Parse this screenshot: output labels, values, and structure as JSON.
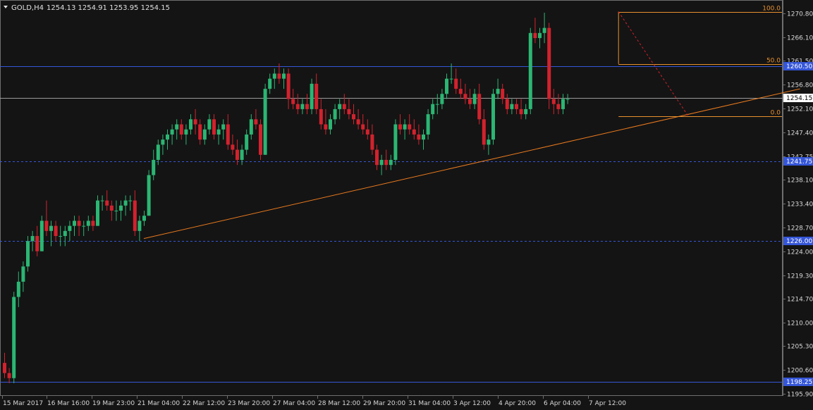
{
  "header": {
    "symbol": "GOLD,H4",
    "ohlc": "1254.13 1254.91 1253.95 1254.15"
  },
  "colors": {
    "background": "#141414",
    "bull": "#2bb673",
    "bear": "#d2222d",
    "hline": "#3556d8",
    "trend": "#e8791e",
    "fibo": "#e8912e",
    "bid": "#9a9a9a"
  },
  "chart_data": {
    "type": "candlestick",
    "timeframe": "H4",
    "ylim": [
      1195.5,
      1273.5
    ],
    "y_ticks": [
      "1270.80",
      "1266.10",
      "1261.50",
      "1256.80",
      "1252.10",
      "1247.40",
      "1242.75",
      "1238.10",
      "1233.40",
      "1228.70",
      "1224.00",
      "1219.30",
      "1214.70",
      "1210.00",
      "1205.30",
      "1200.60",
      "1195.90"
    ],
    "x_ticks": [
      "15 Mar 2017",
      "16 Mar 16:00",
      "19 Mar 23:00",
      "21 Mar 04:00",
      "22 Mar 12:00",
      "23 Mar 20:00",
      "27 Mar 04:00",
      "28 Mar 12:00",
      "29 Mar 20:00",
      "31 Mar 04:00",
      "3 Apr 12:00",
      "4 Apr 20:00",
      "6 Apr 04:00",
      "7 Apr 12:00"
    ],
    "horizontal_lines": [
      {
        "price": 1260.5,
        "label": "1260.50",
        "style": "solid"
      },
      {
        "price": 1241.75,
        "label": "1241.75",
        "style": "dashed"
      },
      {
        "price": 1226.0,
        "label": "1226.00",
        "style": "dashed"
      },
      {
        "price": 1198.25,
        "label": "1198.25",
        "style": "solid"
      }
    ],
    "current_price": {
      "price": 1254.15,
      "label": "1254.15"
    },
    "trendline": {
      "from": {
        "bar": 30,
        "price": 1226.5
      },
      "to": {
        "bar": 171,
        "price": 1256.0
      }
    },
    "fibonacci": {
      "levels": [
        {
          "level": "100.0",
          "price": 1271.2
        },
        {
          "level": "50.0",
          "price": 1260.9
        },
        {
          "level": "0.0",
          "price": 1250.6
        }
      ],
      "anchor_high": {
        "bar": 132,
        "price": 1271.2
      },
      "anchor_low": {
        "bar": 147,
        "price": 1250.6
      }
    },
    "candles": [
      [
        1202,
        1204,
        1199,
        1200
      ],
      [
        1200,
        1201,
        1198,
        1199
      ],
      [
        1199,
        1216,
        1198,
        1215
      ],
      [
        1215,
        1220,
        1213,
        1218
      ],
      [
        1218,
        1222,
        1216,
        1221
      ],
      [
        1221,
        1227,
        1220,
        1226
      ],
      [
        1226,
        1228,
        1224,
        1227
      ],
      [
        1227,
        1229,
        1223,
        1224
      ],
      [
        1224,
        1231,
        1224,
        1230
      ],
      [
        1230,
        1234,
        1227,
        1228
      ],
      [
        1228,
        1230,
        1225,
        1229
      ],
      [
        1229,
        1230,
        1226,
        1227
      ],
      [
        1227,
        1229,
        1225,
        1227
      ],
      [
        1227,
        1229,
        1225,
        1228
      ],
      [
        1228,
        1230,
        1226,
        1229
      ],
      [
        1229,
        1231,
        1227,
        1230
      ],
      [
        1230,
        1231,
        1227,
        1229
      ],
      [
        1229,
        1230,
        1227,
        1229
      ],
      [
        1229,
        1231,
        1228,
        1230
      ],
      [
        1230,
        1231,
        1228,
        1229
      ],
      [
        1229,
        1235,
        1229,
        1234
      ],
      [
        1234,
        1235,
        1232,
        1234
      ],
      [
        1234,
        1236,
        1232,
        1233
      ],
      [
        1233,
        1234,
        1230,
        1232
      ],
      [
        1232,
        1234,
        1230,
        1232
      ],
      [
        1232,
        1234,
        1230,
        1233
      ],
      [
        1233,
        1235,
        1231,
        1234
      ],
      [
        1234,
        1235,
        1232,
        1234
      ],
      [
        1234,
        1236,
        1227,
        1228
      ],
      [
        1228,
        1231,
        1226,
        1230
      ],
      [
        1230,
        1232,
        1229,
        1231
      ],
      [
        1231,
        1240,
        1231,
        1239
      ],
      [
        1239,
        1244,
        1238,
        1242
      ],
      [
        1242,
        1246,
        1241,
        1245
      ],
      [
        1245,
        1247,
        1243,
        1246
      ],
      [
        1246,
        1248,
        1244,
        1247
      ],
      [
        1247,
        1249,
        1245,
        1248
      ],
      [
        1248,
        1250,
        1246,
        1249
      ],
      [
        1249,
        1250,
        1246,
        1247
      ],
      [
        1247,
        1249,
        1245,
        1248
      ],
      [
        1248,
        1251,
        1247,
        1250
      ],
      [
        1250,
        1252,
        1247,
        1249
      ],
      [
        1249,
        1250,
        1245,
        1246
      ],
      [
        1246,
        1249,
        1245,
        1248
      ],
      [
        1248,
        1251,
        1247,
        1250
      ],
      [
        1250,
        1251,
        1246,
        1247
      ],
      [
        1247,
        1249,
        1245,
        1248
      ],
      [
        1248,
        1250,
        1246,
        1249
      ],
      [
        1249,
        1251,
        1244,
        1245
      ],
      [
        1245,
        1247,
        1243,
        1244
      ],
      [
        1244,
        1246,
        1241,
        1242
      ],
      [
        1242,
        1245,
        1241,
        1244
      ],
      [
        1244,
        1248,
        1243,
        1247
      ],
      [
        1247,
        1251,
        1246,
        1250
      ],
      [
        1250,
        1252,
        1248,
        1249
      ],
      [
        1249,
        1250,
        1242,
        1243
      ],
      [
        1243,
        1257,
        1243,
        1256
      ],
      [
        1256,
        1259,
        1255,
        1258
      ],
      [
        1258,
        1260,
        1256,
        1259
      ],
      [
        1259,
        1261,
        1257,
        1258
      ],
      [
        1258,
        1260,
        1256,
        1259
      ],
      [
        1259,
        1260,
        1252,
        1254
      ],
      [
        1254,
        1256,
        1252,
        1253
      ],
      [
        1253,
        1255,
        1251,
        1252
      ],
      [
        1252,
        1254,
        1251,
        1253
      ],
      [
        1253,
        1255,
        1251,
        1252
      ],
      [
        1252,
        1258,
        1251,
        1257
      ],
      [
        1257,
        1259,
        1251,
        1252
      ],
      [
        1252,
        1254,
        1248,
        1249
      ],
      [
        1249,
        1252,
        1247,
        1248
      ],
      [
        1248,
        1251,
        1247,
        1250
      ],
      [
        1250,
        1253,
        1249,
        1252
      ],
      [
        1252,
        1254,
        1250,
        1253
      ],
      [
        1253,
        1255,
        1251,
        1252
      ],
      [
        1252,
        1254,
        1250,
        1251
      ],
      [
        1251,
        1253,
        1249,
        1250
      ],
      [
        1250,
        1252,
        1248,
        1249
      ],
      [
        1249,
        1251,
        1247,
        1248
      ],
      [
        1248,
        1250,
        1246,
        1247
      ],
      [
        1247,
        1249,
        1243,
        1244
      ],
      [
        1244,
        1245,
        1240,
        1241
      ],
      [
        1241,
        1243,
        1239,
        1242
      ],
      [
        1242,
        1244,
        1240,
        1241
      ],
      [
        1241,
        1243,
        1240,
        1242
      ],
      [
        1242,
        1250,
        1241,
        1249
      ],
      [
        1249,
        1251,
        1247,
        1248
      ],
      [
        1248,
        1250,
        1246,
        1249
      ],
      [
        1249,
        1251,
        1247,
        1248
      ],
      [
        1248,
        1250,
        1246,
        1247
      ],
      [
        1247,
        1249,
        1245,
        1246
      ],
      [
        1246,
        1248,
        1244,
        1247
      ],
      [
        1247,
        1252,
        1246,
        1251
      ],
      [
        1251,
        1254,
        1250,
        1253
      ],
      [
        1253,
        1255,
        1251,
        1253
      ],
      [
        1253,
        1256,
        1252,
        1255
      ],
      [
        1255,
        1259,
        1254,
        1258
      ],
      [
        1258,
        1261,
        1257,
        1258
      ],
      [
        1258,
        1260,
        1255,
        1256
      ],
      [
        1256,
        1258,
        1254,
        1255
      ],
      [
        1255,
        1257,
        1253,
        1254
      ],
      [
        1254,
        1256,
        1252,
        1253
      ],
      [
        1253,
        1256,
        1252,
        1255
      ],
      [
        1255,
        1257,
        1249,
        1250
      ],
      [
        1250,
        1252,
        1244,
        1245
      ],
      [
        1245,
        1247,
        1243,
        1246
      ],
      [
        1246,
        1256,
        1245,
        1255
      ],
      [
        1255,
        1258,
        1254,
        1256
      ],
      [
        1256,
        1257,
        1253,
        1254
      ],
      [
        1254,
        1255,
        1251,
        1252
      ],
      [
        1252,
        1254,
        1251,
        1253
      ],
      [
        1253,
        1254,
        1251,
        1252
      ],
      [
        1252,
        1254,
        1250,
        1251
      ],
      [
        1251,
        1253,
        1250,
        1252
      ],
      [
        1252,
        1268,
        1251,
        1267
      ],
      [
        1267,
        1270,
        1265,
        1266
      ],
      [
        1266,
        1268,
        1264,
        1267
      ],
      [
        1267,
        1271,
        1265,
        1268
      ],
      [
        1268,
        1269,
        1252,
        1254
      ],
      [
        1254,
        1256,
        1251,
        1253
      ],
      [
        1253,
        1255,
        1251,
        1252
      ],
      [
        1252,
        1255,
        1251,
        1254
      ],
      [
        1254,
        1255,
        1253,
        1254
      ]
    ]
  }
}
